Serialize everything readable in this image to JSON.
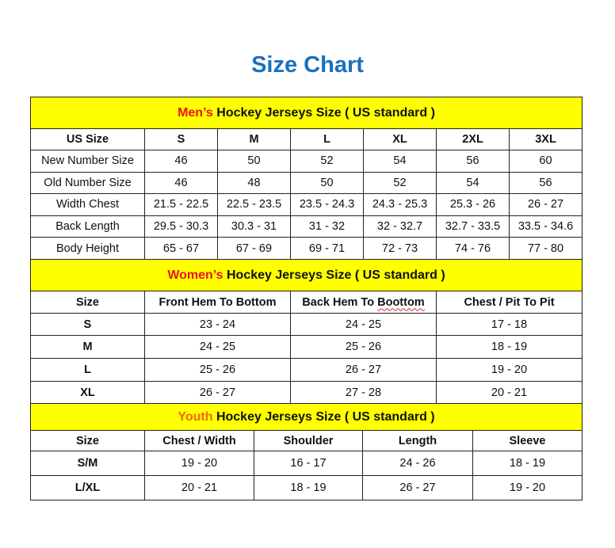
{
  "title": "Size Chart",
  "colors": {
    "title": "#1a6fc0",
    "section_bg": "#ffff00",
    "mens": "#e8141b",
    "womens": "#e8141b",
    "youth": "#f26a0c"
  },
  "mens": {
    "prefix": "Men’s",
    "heading": " Hockey Jerseys Size ( US standard )",
    "header": [
      "US Size",
      "S",
      "M",
      "L",
      "XL",
      "2XL",
      "3XL"
    ],
    "rows": [
      [
        "New Number Size",
        "46",
        "50",
        "52",
        "54",
        "56",
        "60"
      ],
      [
        "Old Number Size",
        "46",
        "48",
        "50",
        "52",
        "54",
        "56"
      ],
      [
        "Width Chest",
        "21.5 - 22.5",
        "22.5 - 23.5",
        "23.5 - 24.3",
        "24.3 - 25.3",
        "25.3 - 26",
        "26 - 27"
      ],
      [
        "Back Length",
        "29.5 - 30.3",
        "30.3 - 31",
        "31 - 32",
        "32 - 32.7",
        "32.7 - 33.5",
        "33.5 - 34.6"
      ],
      [
        "Body Height",
        "65 - 67",
        "67 - 69",
        "69 - 71",
        "72 - 73",
        "74 - 76",
        "77 - 80"
      ]
    ]
  },
  "womens": {
    "prefix": "Women’s",
    "heading": " Hockey Jerseys Size ( US standard )",
    "header": [
      "Size",
      "Front Hem To Bottom",
      "Back Hem To Boottom",
      "Chest / Pit To Pit"
    ],
    "rows": [
      [
        "S",
        "23 - 24",
        "24 - 25",
        "17 - 18"
      ],
      [
        "M",
        "24 - 25",
        "25 - 26",
        "18 - 19"
      ],
      [
        "L",
        "25 - 26",
        "26 - 27",
        "19 - 20"
      ],
      [
        "XL",
        "26 - 27",
        "27 - 28",
        "20 - 21"
      ]
    ]
  },
  "youth": {
    "prefix": "Youth",
    "heading": " Hockey Jerseys Size ( US standard )",
    "header": [
      "Size",
      "Chest / Width",
      "Shoulder",
      "Length",
      "Sleeve"
    ],
    "rows": [
      [
        "S/M",
        "19 - 20",
        "16 - 17",
        "24 - 26",
        "18 - 19"
      ],
      [
        "L/XL",
        "20 - 21",
        "18 - 19",
        "26 - 27",
        "19 - 20"
      ]
    ]
  }
}
